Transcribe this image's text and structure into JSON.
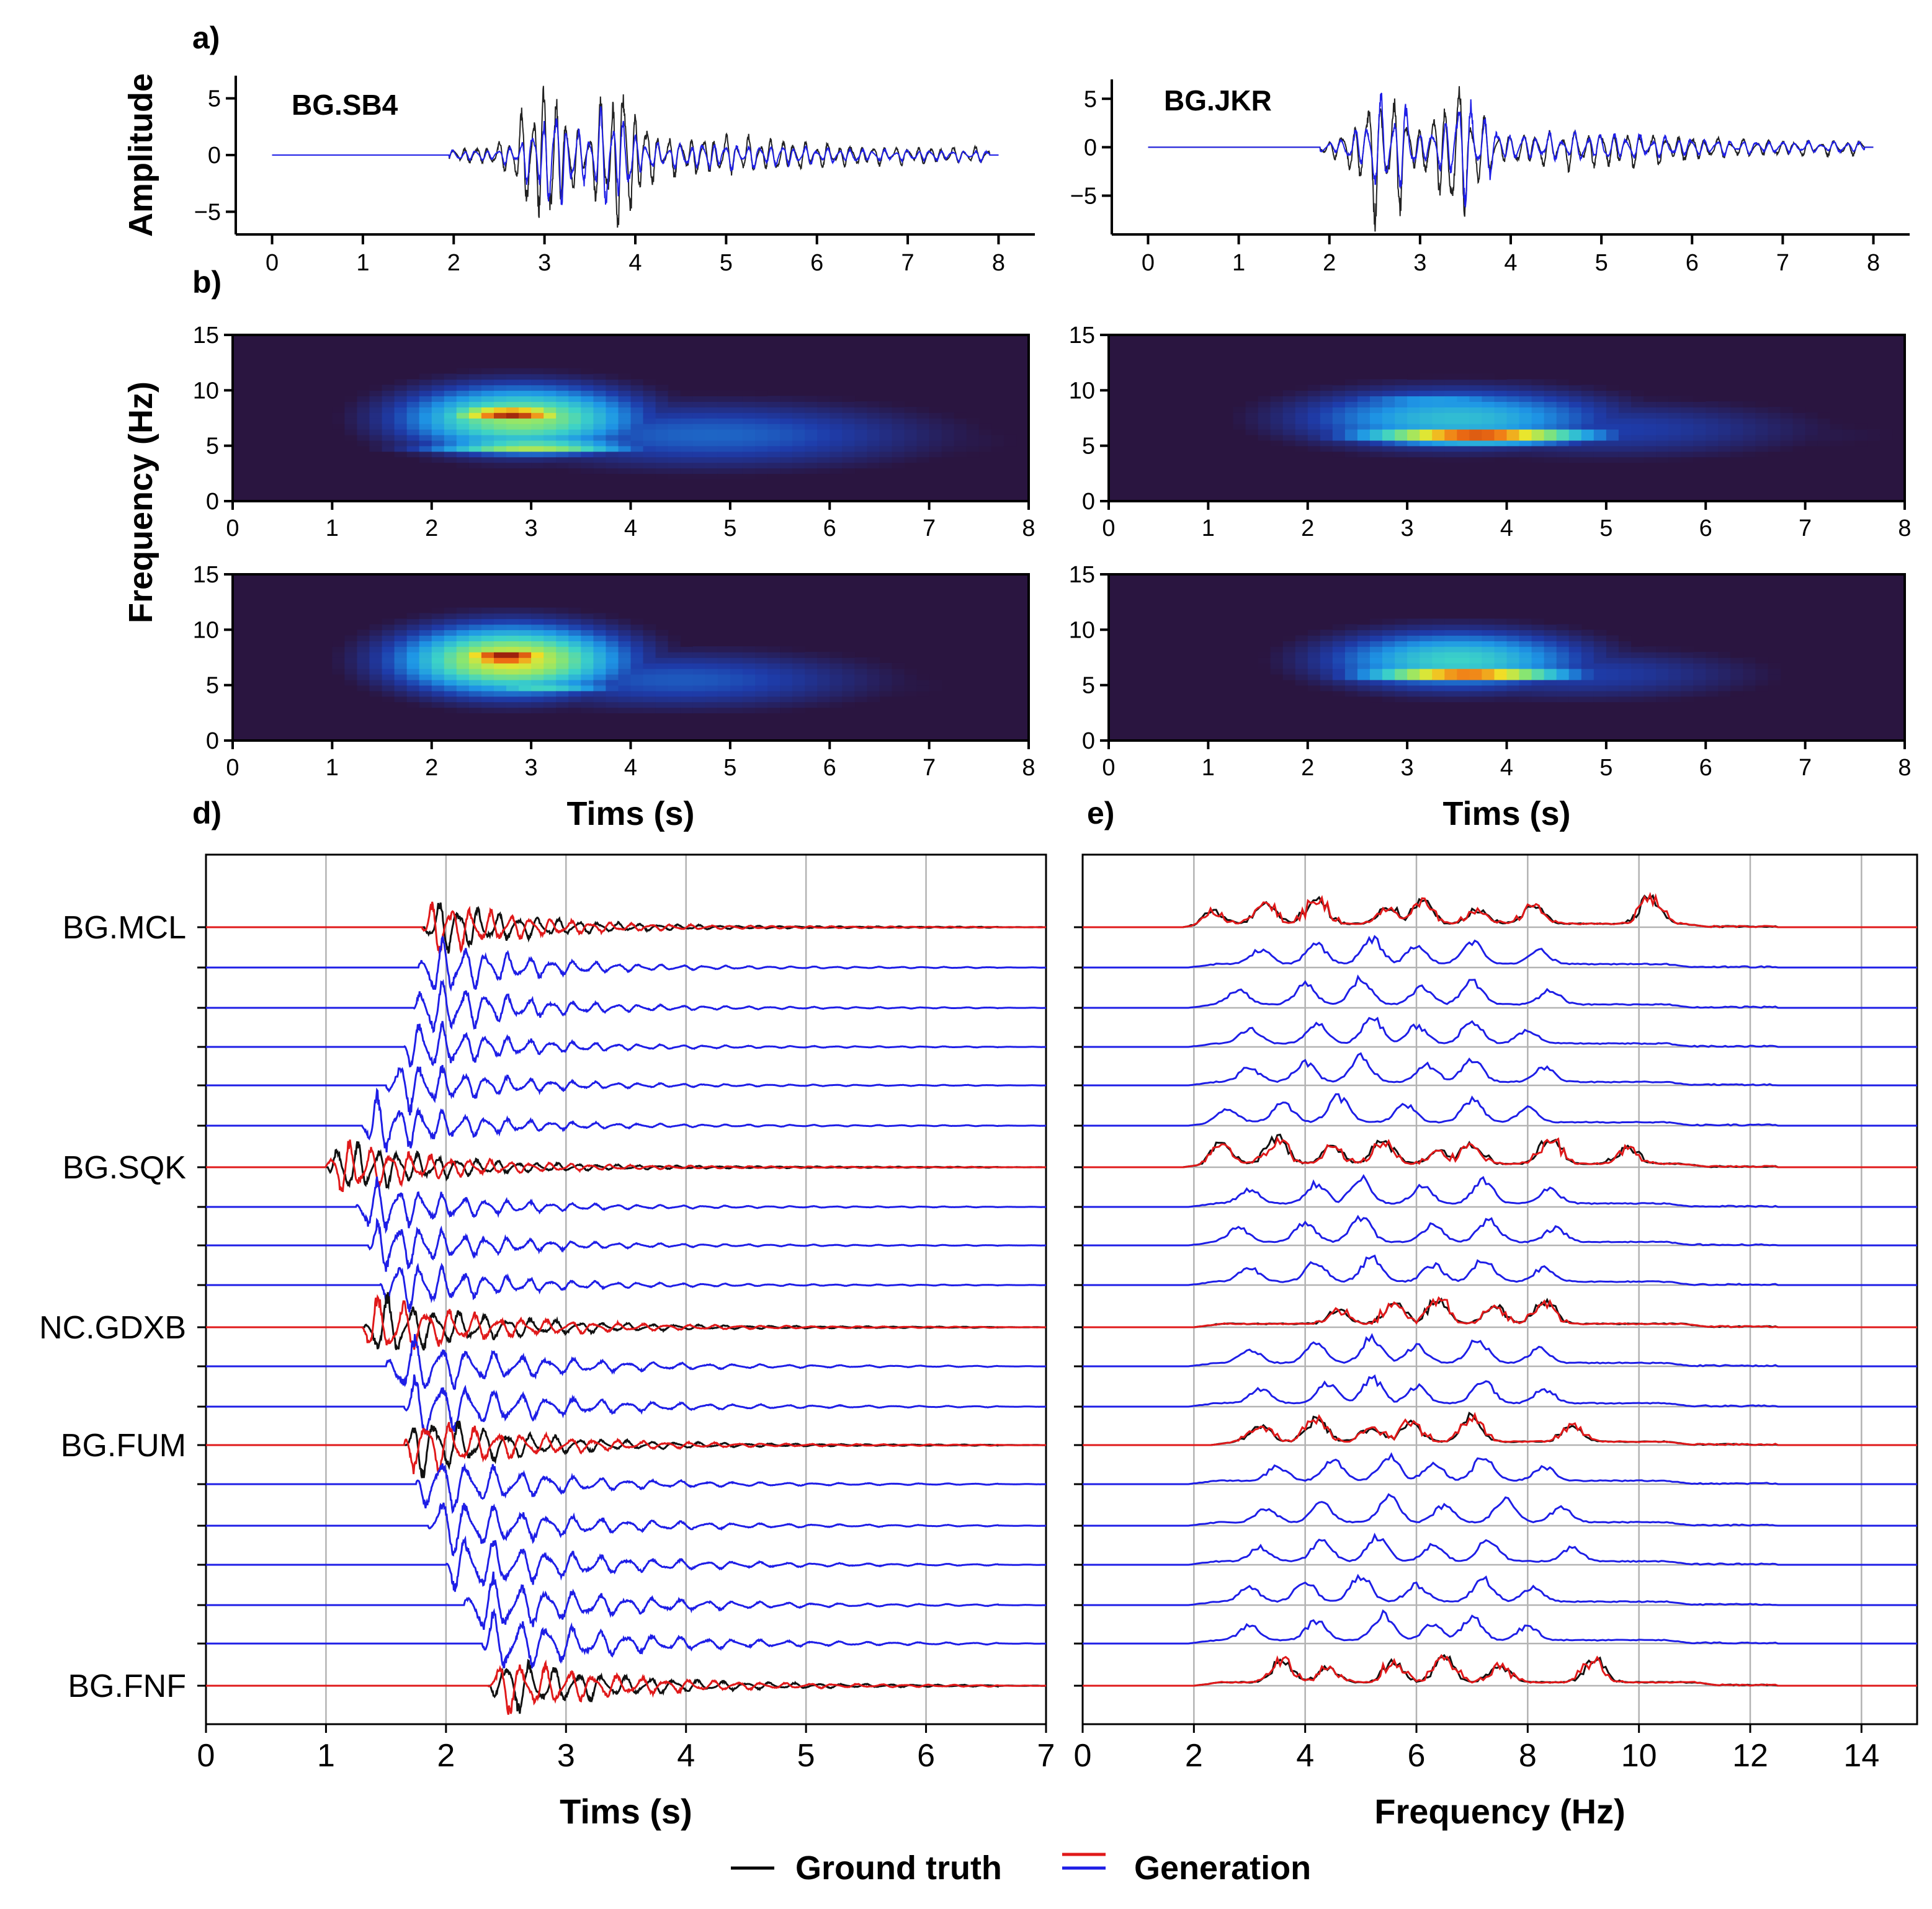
{
  "panel_labels": [
    "a)",
    "b)",
    "d)",
    "e)"
  ],
  "colors": {
    "ground_truth": "#000000",
    "generation_red": "#e0191a",
    "generation_blue": "#1e1ee6",
    "grid": "#b3b3b3",
    "spectrogram_background": "#2a1540"
  },
  "legend": {
    "ground_truth": "Ground truth",
    "generation": "Generation",
    "position": "bottom-center"
  },
  "chart_data": [
    {
      "id": "a-left",
      "type": "line",
      "panel": "a",
      "annotation": "BG.SB4",
      "ylabel": "Amplitude",
      "xlim": [
        -0.4,
        8.4
      ],
      "ylim": [
        -7,
        7
      ],
      "xticks": [
        0,
        1,
        2,
        3,
        4,
        5,
        6,
        7,
        8
      ],
      "yticks": [
        -5,
        0,
        5
      ],
      "series": [
        {
          "role": "ground_truth",
          "onset": 1.95,
          "end": 7.9,
          "peak": 6.1,
          "trough": -6.4,
          "energy_centers": [
            3.0,
            3.8
          ],
          "dominant_freq": 8
        },
        {
          "role": "generation",
          "onset": 1.95,
          "end": 7.9,
          "peak": 4.3,
          "trough": -4.4,
          "energy_centers": [
            3.1,
            3.7
          ],
          "dominant_freq": 8
        }
      ]
    },
    {
      "id": "a-right",
      "type": "line",
      "panel": "a",
      "annotation": "BG.JKR",
      "xlim": [
        -0.4,
        8.4
      ],
      "ylim": [
        -9,
        7
      ],
      "xticks": [
        0,
        1,
        2,
        3,
        4,
        5,
        6,
        7,
        8
      ],
      "yticks": [
        -5,
        0,
        5
      ],
      "series": [
        {
          "role": "ground_truth",
          "onset": 1.9,
          "end": 7.9,
          "peak": 6.3,
          "trough": -8.7,
          "energy_centers": [
            2.6,
            3.4
          ],
          "dominant_freq": 7
        },
        {
          "role": "generation",
          "onset": 1.9,
          "end": 7.9,
          "peak": 5.6,
          "trough": -6.2,
          "energy_centers": [
            2.65,
            3.5
          ],
          "dominant_freq": 7
        }
      ]
    },
    {
      "id": "b-top-left",
      "type": "heatmap",
      "panel": "b",
      "ylabel": "Frequency (Hz)",
      "xlim": [
        0,
        8
      ],
      "ylim": [
        0,
        15
      ],
      "xticks": [
        0,
        1,
        2,
        3,
        4,
        5,
        6,
        7,
        8
      ],
      "yticks": [
        0,
        5,
        10,
        15
      ],
      "blobs": [
        {
          "t": 2.9,
          "f": 7.5,
          "st": 0.9,
          "sf": 2.2,
          "a": 0.7
        },
        {
          "t": 2.8,
          "f": 7.9,
          "st": 0.55,
          "sf": 0.6,
          "a": 1.0
        },
        {
          "t": 3.0,
          "f": 4.9,
          "st": 0.8,
          "sf": 0.5,
          "a": 0.75
        },
        {
          "t": 4.8,
          "f": 6.0,
          "st": 1.7,
          "sf": 2.3,
          "a": 0.32
        },
        {
          "t": 6.5,
          "f": 5.5,
          "st": 1.5,
          "sf": 2.0,
          "a": 0.12
        }
      ]
    },
    {
      "id": "b-top-right",
      "type": "heatmap",
      "panel": "b",
      "xlim": [
        0,
        8
      ],
      "ylim": [
        0,
        15
      ],
      "xticks": [
        0,
        1,
        2,
        3,
        4,
        5,
        6,
        7,
        8
      ],
      "yticks": [
        0,
        5,
        10,
        15
      ],
      "blobs": [
        {
          "t": 3.7,
          "f": 6.0,
          "st": 0.9,
          "sf": 0.6,
          "a": 1.0
        },
        {
          "t": 3.5,
          "f": 7.5,
          "st": 1.2,
          "sf": 2.0,
          "a": 0.5
        },
        {
          "t": 3.3,
          "f": 9.0,
          "st": 0.8,
          "sf": 0.6,
          "a": 0.45
        },
        {
          "t": 5.0,
          "f": 6.5,
          "st": 1.6,
          "sf": 2.0,
          "a": 0.25
        },
        {
          "t": 7.0,
          "f": 6.0,
          "st": 1.3,
          "sf": 1.5,
          "a": 0.1
        }
      ]
    },
    {
      "id": "b-bottom-left",
      "type": "heatmap",
      "panel": "b",
      "xlabel": "Tims (s)",
      "xlim": [
        0,
        8
      ],
      "ylim": [
        0,
        15
      ],
      "xticks": [
        0,
        1,
        2,
        3,
        4,
        5,
        6,
        7,
        8
      ],
      "yticks": [
        0,
        5,
        10,
        15
      ],
      "blobs": [
        {
          "t": 2.8,
          "f": 7.3,
          "st": 0.85,
          "sf": 2.3,
          "a": 0.8
        },
        {
          "t": 2.75,
          "f": 7.6,
          "st": 0.5,
          "sf": 0.8,
          "a": 1.0
        },
        {
          "t": 3.1,
          "f": 4.9,
          "st": 0.6,
          "sf": 0.4,
          "a": 0.6
        },
        {
          "t": 4.5,
          "f": 5.5,
          "st": 1.5,
          "sf": 2.0,
          "a": 0.3
        },
        {
          "t": 6.3,
          "f": 5.0,
          "st": 1.3,
          "sf": 1.8,
          "a": 0.1
        }
      ]
    },
    {
      "id": "b-bottom-right",
      "type": "heatmap",
      "panel": "b",
      "xlabel": "Tims (s)",
      "xlim": [
        0,
        8
      ],
      "ylim": [
        0,
        15
      ],
      "xticks": [
        0,
        1,
        2,
        3,
        4,
        5,
        6,
        7,
        8
      ],
      "yticks": [
        0,
        5,
        10,
        15
      ],
      "blobs": [
        {
          "t": 3.6,
          "f": 6.0,
          "st": 0.8,
          "sf": 0.5,
          "a": 1.0
        },
        {
          "t": 3.5,
          "f": 7.3,
          "st": 1.0,
          "sf": 2.0,
          "a": 0.55
        },
        {
          "t": 4.7,
          "f": 6.0,
          "st": 1.4,
          "sf": 1.8,
          "a": 0.25
        },
        {
          "t": 6.8,
          "f": 5.5,
          "st": 1.2,
          "sf": 1.5,
          "a": 0.08
        }
      ]
    },
    {
      "id": "d",
      "type": "line",
      "panel": "d",
      "xlabel": "Tims (s)",
      "xlim": [
        0,
        7
      ],
      "xticks": [
        0,
        1,
        2,
        3,
        4,
        5,
        6,
        7
      ],
      "grid": true,
      "rows": [
        {
          "label": "BG.MCL",
          "observed": true,
          "onset": 1.85,
          "freq": 6.0,
          "len": 1.6,
          "amp": 0.55
        },
        {
          "label": "",
          "observed": false,
          "onset": 1.82,
          "freq": 5.5,
          "len": 1.5,
          "amp": 0.6
        },
        {
          "label": "",
          "observed": false,
          "onset": 1.78,
          "freq": 5.5,
          "len": 1.5,
          "amp": 0.6
        },
        {
          "label": "",
          "observed": false,
          "onset": 1.7,
          "freq": 5.5,
          "len": 1.5,
          "amp": 0.55
        },
        {
          "label": "",
          "observed": false,
          "onset": 1.55,
          "freq": 5.5,
          "len": 1.5,
          "amp": 0.55
        },
        {
          "label": "",
          "observed": false,
          "onset": 1.35,
          "freq": 5.5,
          "len": 1.5,
          "amp": 0.6
        },
        {
          "label": "BG.SQK",
          "observed": true,
          "onset": 1.05,
          "freq": 6.0,
          "len": 1.8,
          "amp": 0.55
        },
        {
          "label": "",
          "observed": false,
          "onset": 1.3,
          "freq": 5.5,
          "len": 1.6,
          "amp": 0.55
        },
        {
          "label": "",
          "observed": false,
          "onset": 1.4,
          "freq": 5.5,
          "len": 1.6,
          "amp": 0.55
        },
        {
          "label": "",
          "observed": false,
          "onset": 1.5,
          "freq": 5.5,
          "len": 1.6,
          "amp": 0.55
        },
        {
          "label": "NC.GDXB",
          "observed": true,
          "onset": 1.35,
          "freq": 5.0,
          "len": 2.0,
          "amp": 0.6
        },
        {
          "label": "",
          "observed": false,
          "onset": 1.55,
          "freq": 4.5,
          "len": 2.0,
          "amp": 0.6
        },
        {
          "label": "",
          "observed": false,
          "onset": 1.7,
          "freq": 4.5,
          "len": 2.0,
          "amp": 0.6
        },
        {
          "label": "BG.FUM",
          "observed": true,
          "onset": 1.7,
          "freq": 5.0,
          "len": 1.8,
          "amp": 0.6
        },
        {
          "label": "",
          "observed": false,
          "onset": 1.8,
          "freq": 4.5,
          "len": 1.8,
          "amp": 0.6
        },
        {
          "label": "",
          "observed": false,
          "onset": 1.9,
          "freq": 4.5,
          "len": 1.9,
          "amp": 0.6
        },
        {
          "label": "",
          "observed": false,
          "onset": 2.05,
          "freq": 4.5,
          "len": 2.0,
          "amp": 0.6
        },
        {
          "label": "",
          "observed": false,
          "onset": 2.2,
          "freq": 4.5,
          "len": 2.0,
          "amp": 0.6
        },
        {
          "label": "",
          "observed": false,
          "onset": 2.35,
          "freq": 4.5,
          "len": 2.0,
          "amp": 0.6
        },
        {
          "label": "BG.FNF",
          "observed": true,
          "onset": 2.4,
          "freq": 5.0,
          "len": 2.0,
          "amp": 0.55
        }
      ]
    },
    {
      "id": "e",
      "type": "line",
      "panel": "e",
      "xlabel": "Frequency (Hz)",
      "xlim": [
        0,
        15
      ],
      "xticks": [
        0,
        2,
        4,
        6,
        8,
        10,
        12,
        14
      ],
      "grid": true,
      "rows": [
        {
          "observed": true,
          "peaks": [
            2.3,
            3.3,
            4.2,
            5.5,
            6.1,
            7.1,
            8.1,
            10.2
          ],
          "band": [
            1.8,
            11.3
          ]
        },
        {
          "observed": false,
          "peaks": [
            3.2,
            4.2,
            5.2,
            6.0,
            7.0,
            8.2
          ],
          "band": [
            1.9,
            11.0
          ]
        },
        {
          "observed": false,
          "peaks": [
            2.8,
            4.0,
            5.0,
            6.1,
            7.0,
            8.4
          ],
          "band": [
            1.9,
            11.0
          ]
        },
        {
          "observed": false,
          "peaks": [
            3.0,
            4.2,
            5.2,
            6.0,
            7.0,
            8.0
          ],
          "band": [
            1.9,
            11.0
          ]
        },
        {
          "observed": false,
          "peaks": [
            3.0,
            4.0,
            5.0,
            6.2,
            7.0,
            8.3
          ],
          "band": [
            1.9,
            11.0
          ]
        },
        {
          "observed": false,
          "peaks": [
            2.6,
            3.6,
            4.6,
            5.8,
            7.0,
            8.0
          ],
          "band": [
            1.9,
            11.0
          ]
        },
        {
          "observed": true,
          "peaks": [
            2.5,
            3.5,
            4.5,
            5.4,
            6.4,
            7.0,
            8.4,
            9.8
          ],
          "band": [
            1.8,
            11.3
          ]
        },
        {
          "observed": false,
          "peaks": [
            3.0,
            4.2,
            5.0,
            6.1,
            7.2,
            8.4
          ],
          "band": [
            1.9,
            11.0
          ]
        },
        {
          "observed": false,
          "peaks": [
            2.8,
            4.0,
            5.0,
            6.3,
            7.3,
            8.5
          ],
          "band": [
            1.9,
            11.0
          ]
        },
        {
          "observed": false,
          "peaks": [
            3.0,
            4.2,
            5.2,
            6.3,
            7.2,
            8.3
          ],
          "band": [
            1.9,
            11.0
          ]
        },
        {
          "observed": true,
          "peaks": [
            4.6,
            5.6,
            6.4,
            7.4,
            8.3
          ],
          "band": [
            2.0,
            11.3
          ]
        },
        {
          "observed": false,
          "peaks": [
            3.0,
            4.2,
            5.2,
            6.0,
            7.1,
            8.2
          ],
          "band": [
            1.9,
            11.0
          ]
        },
        {
          "observed": false,
          "peaks": [
            3.2,
            4.4,
            5.2,
            6.0,
            7.2,
            8.3
          ],
          "band": [
            1.9,
            11.0
          ]
        },
        {
          "observed": true,
          "peaks": [
            3.2,
            4.2,
            5.2,
            5.9,
            7.0,
            8.8
          ],
          "band": [
            2.3,
            11.0
          ]
        },
        {
          "observed": false,
          "peaks": [
            3.5,
            4.5,
            5.5,
            6.3,
            7.2,
            8.3
          ],
          "band": [
            1.9,
            11.0
          ]
        },
        {
          "observed": false,
          "peaks": [
            3.3,
            4.3,
            5.5,
            6.5,
            7.6,
            8.6
          ],
          "band": [
            1.9,
            11.0
          ]
        },
        {
          "observed": false,
          "peaks": [
            3.2,
            4.3,
            5.3,
            6.3,
            7.3,
            8.8
          ],
          "band": [
            1.9,
            11.0
          ]
        },
        {
          "observed": false,
          "peaks": [
            3.0,
            4.0,
            5.0,
            6.0,
            7.2,
            8.1
          ],
          "band": [
            1.9,
            11.0
          ]
        },
        {
          "observed": false,
          "peaks": [
            3.0,
            4.2,
            5.4,
            6.3,
            7.0,
            8.0
          ],
          "band": [
            1.9,
            11.0
          ]
        },
        {
          "observed": true,
          "peaks": [
            3.6,
            4.4,
            5.6,
            6.5,
            7.5,
            9.2
          ],
          "band": [
            2.0,
            11.5
          ]
        }
      ]
    }
  ]
}
